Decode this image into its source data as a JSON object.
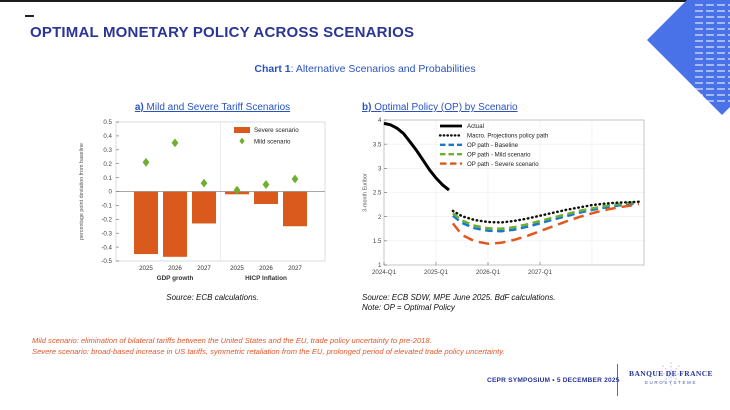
{
  "slide": {
    "title": "OPTIMAL MONETARY POLICY ACROSS SCENARIOS",
    "subtitle_bold": "Chart 1",
    "subtitle_rest": ":  Alternative Scenarios and Probabilities",
    "notes": {
      "mild": "Mild scenario: elimination of bilateral tariffs between the United States and the EU, trade policy uncertainty to pre-2018.",
      "severe": "Severe scenario: broad-based increase in US tariffs, symmetric retaliation from the EU, prolonged period of elevated trade policy uncertainty."
    },
    "footer": {
      "event": "CEPR SYMPOSIUM • 5 DECEMBER 2025",
      "logo_name": "BANQUE DE FRANCE",
      "logo_sub": "EUROSYSTÈME"
    }
  },
  "colors": {
    "title_navy": "#2b3594",
    "subtitle_blue": "#2953c0",
    "note_orange": "#e2572a",
    "footer_navy": "#28339b",
    "logo_sub_blue": "#4a58b0",
    "logo_diamond_blue": "#4a72e8"
  },
  "chart_data": [
    {
      "id": "chart-a",
      "type": "bar",
      "title_bold": "a)",
      "title_rest": " Mild and Severe Tariff Scenarios",
      "ylabel": "percentage point deviation from baseline",
      "ylim": [
        -0.5,
        0.5
      ],
      "ytick_step": 0.1,
      "categories": [
        "2025",
        "2026",
        "2027",
        "2025",
        "2026",
        "2027"
      ],
      "group_labels": [
        "GDP growth",
        "HICP Inflation"
      ],
      "series": [
        {
          "name": "Severe scenario",
          "marker": "bar",
          "color": "#d95a1c",
          "values": [
            -0.45,
            -0.47,
            -0.23,
            -0.02,
            -0.09,
            -0.25
          ]
        },
        {
          "name": "Mild scenario",
          "marker": "diamond",
          "color": "#6fae2e",
          "values": [
            0.21,
            0.35,
            0.06,
            0.01,
            0.05,
            0.09
          ]
        }
      ],
      "source": "Source: ECB calculations."
    },
    {
      "id": "chart-b",
      "type": "line",
      "title_bold": "b)",
      "title_rest": " Optimal Policy (OP) by Scenario",
      "ylabel": "3-month Euribor",
      "ylim": [
        1,
        4
      ],
      "ytick_step": 0.5,
      "xlim": [
        0,
        20
      ],
      "x_unit": "quarters since 2024-Q1",
      "xticks": [
        {
          "q": 0,
          "label": "2024-Q1"
        },
        {
          "q": 4,
          "label": "2025-Q1"
        },
        {
          "q": 8,
          "label": "2026-Q1"
        },
        {
          "q": 12,
          "label": "2027-Q1"
        }
      ],
      "series": [
        {
          "name": "Actual",
          "color": "#000000",
          "style": "solid",
          "width": 3,
          "x": [
            0,
            0.5,
            1,
            1.5,
            2,
            2.5,
            3,
            3.5,
            4,
            4.5,
            5
          ],
          "y": [
            3.93,
            3.9,
            3.83,
            3.72,
            3.55,
            3.37,
            3.17,
            2.97,
            2.8,
            2.66,
            2.55
          ]
        },
        {
          "name": "Macro. Projections policy path",
          "color": "#111111",
          "style": "dotted",
          "width": 2.5,
          "x": [
            5.3,
            6,
            7,
            8,
            9,
            10,
            11,
            12,
            13,
            14,
            15,
            16,
            17,
            18,
            19,
            19.6
          ],
          "y": [
            2.12,
            2.01,
            1.93,
            1.89,
            1.88,
            1.91,
            1.96,
            2.02,
            2.08,
            2.14,
            2.19,
            2.24,
            2.27,
            2.29,
            2.3,
            2.31
          ]
        },
        {
          "name": "OP path - Baseline",
          "color": "#1778d0",
          "style": "dashed",
          "width": 2.5,
          "x": [
            5.3,
            6,
            7,
            8,
            9,
            10,
            11,
            12,
            13,
            14,
            15,
            16,
            17,
            18,
            19,
            19.6
          ],
          "y": [
            2.02,
            1.87,
            1.76,
            1.71,
            1.7,
            1.73,
            1.79,
            1.86,
            1.94,
            2.01,
            2.08,
            2.14,
            2.19,
            2.23,
            2.26,
            2.28
          ]
        },
        {
          "name": "OP path - Mild scenario",
          "color": "#6fae2e",
          "style": "dashed",
          "width": 2.5,
          "x": [
            5.3,
            6,
            7,
            8,
            9,
            10,
            11,
            12,
            13,
            14,
            15,
            16,
            17,
            18,
            19,
            19.6
          ],
          "y": [
            2.07,
            1.92,
            1.81,
            1.76,
            1.75,
            1.78,
            1.84,
            1.91,
            1.98,
            2.05,
            2.12,
            2.17,
            2.22,
            2.26,
            2.29,
            2.31
          ]
        },
        {
          "name": "OP path - Severe scenario",
          "color": "#e1571f",
          "style": "longdash",
          "width": 2.5,
          "x": [
            5.3,
            6,
            7,
            8,
            9,
            10,
            11,
            12,
            13,
            14,
            15,
            16,
            17,
            18,
            19,
            19.6
          ],
          "y": [
            1.86,
            1.62,
            1.49,
            1.44,
            1.46,
            1.52,
            1.6,
            1.7,
            1.8,
            1.9,
            1.99,
            2.07,
            2.14,
            2.19,
            2.23,
            2.26
          ]
        }
      ],
      "source": "Source: ECB SDW, MPE June 2025. BdF calculations.",
      "note": "Note: OP = Optimal Policy"
    }
  ]
}
